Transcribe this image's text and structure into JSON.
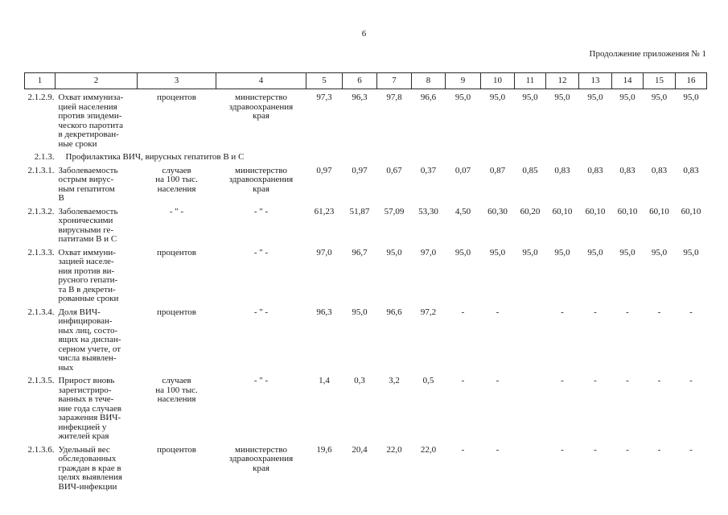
{
  "page": {
    "number": "6",
    "continuation": "Продолжение приложения № 1"
  },
  "table": {
    "header_cols": [
      "1",
      "2",
      "3",
      "4",
      "5",
      "6",
      "7",
      "8",
      "9",
      "10",
      "11",
      "12",
      "13",
      "14",
      "15",
      "16"
    ],
    "rows": [
      {
        "type": "data",
        "num": "2.1.2.9.",
        "indicator": "Охват иммуниза-\nцией населения\nпротив эпидеми-\nческого паротита\nв декретирован-\nные сроки",
        "unit": "процентов",
        "agency": "министерство\nздравоохранения\nкрая",
        "values": [
          "97,3",
          "96,3",
          "97,8",
          "96,6",
          "95,0",
          "95,0",
          "95,0",
          "95,0",
          "95,0",
          "95,0",
          "95,0",
          "95,0"
        ]
      },
      {
        "type": "section",
        "num": "2.1.3.",
        "title": "Профилактика ВИЧ, вирусных гепатитов В и С"
      },
      {
        "type": "data",
        "num": "2.1.3.1.",
        "indicator": "Заболеваемость\nострым вирус-\nным гепатитом\nВ",
        "unit": "случаев\nна 100 тыс.\nнаселения",
        "agency": "министерство\nздравоохранения\nкрая",
        "values": [
          "0,97",
          "0,97",
          "0,67",
          "0,37",
          "0,07",
          "0,87",
          "0,85",
          "0,83",
          "0,83",
          "0,83",
          "0,83",
          "0,83"
        ]
      },
      {
        "type": "data",
        "num": "2.1.3.2.",
        "indicator": "Заболеваемость\nхроническими\nвирусными ге-\nпатитами В и С",
        "unit": "- \" -",
        "agency": "- \" -",
        "values": [
          "61,23",
          "51,87",
          "57,09",
          "53,30",
          "4,50",
          "60,30",
          "60,20",
          "60,10",
          "60,10",
          "60,10",
          "60,10",
          "60,10"
        ]
      },
      {
        "type": "data",
        "num": "2.1.3.3.",
        "indicator": "Охват иммуни-\nзацией населе-\nния против ви-\nрусного гепати-\nта В в декрети-\nрованные сроки",
        "unit": "процентов",
        "agency": "- \" -",
        "values": [
          "97,0",
          "96,7",
          "95,0",
          "97,0",
          "95,0",
          "95,0",
          "95,0",
          "95,0",
          "95,0",
          "95,0",
          "95,0",
          "95,0"
        ]
      },
      {
        "type": "data",
        "num": "2.1.3.4.",
        "indicator": "Доля ВИЧ-\nинфицирован-\nных лиц, состо-\nящих на диспан-\nсерном учете, от\nчисла выявлен-\nных",
        "unit": "процентов",
        "agency": "- \" -",
        "values": [
          "96,3",
          "95,0",
          "96,6",
          "97,2",
          "-",
          "-",
          "",
          "-",
          "-",
          "-",
          "-",
          "-"
        ]
      },
      {
        "type": "data",
        "num": "2.1.3.5.",
        "indicator": "Прирост вновь\nзарегистриро-\nванных в тече-\nние года случаев\nзаражения ВИЧ-\nинфекцией у\nжителей края",
        "unit": "случаев\nна 100 тыс.\nнаселения",
        "agency": "- \" -",
        "values": [
          "1,4",
          "0,3",
          "3,2",
          "0,5",
          "-",
          "-",
          "",
          "-",
          "-",
          "-",
          "-",
          "-"
        ]
      },
      {
        "type": "data",
        "num": "2.1.3.6.",
        "indicator": "Удельный вес\nобследованных\nграждан в крае в\nцелях выявления\nВИЧ-инфекции",
        "unit": "процентов",
        "agency": "министерство\nздравоохранения\nкрая",
        "values": [
          "19,6",
          "20,4",
          "22,0",
          "22,0",
          "-",
          "-",
          "",
          "-",
          "-",
          "-",
          "-",
          "-"
        ]
      }
    ]
  }
}
